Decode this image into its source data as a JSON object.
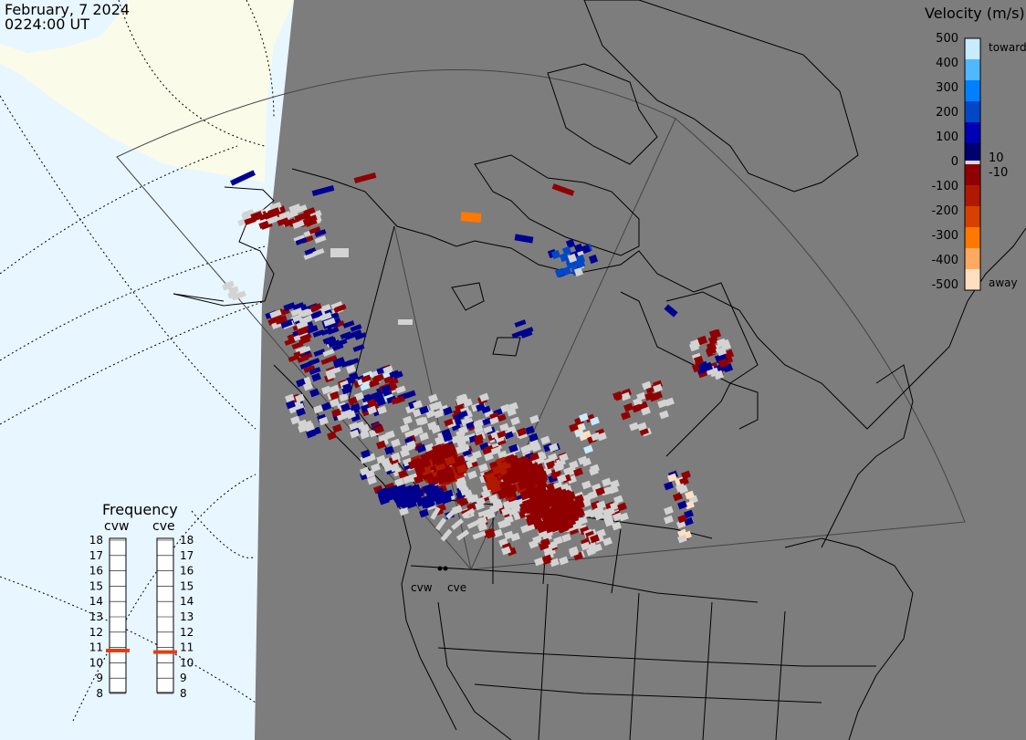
{
  "header": {
    "date": "February, 7 2024",
    "time": "0224:00 UT"
  },
  "colorbar": {
    "title": "Velocity (m/s)",
    "ticks": [
      "500",
      "400",
      "300",
      "200",
      "100",
      "10",
      "0",
      "-10",
      "-100",
      "-200",
      "-300",
      "-400",
      "-500"
    ],
    "toward_label": "toward",
    "away_label": "away",
    "colors": [
      "#ffdfc0",
      "#ffaa60",
      "#ff7800",
      "#d84000",
      "#b01800",
      "#900000",
      "#000070",
      "#0000b4",
      "#0048c8",
      "#0080ff",
      "#50b8ff",
      "#c8ecff"
    ],
    "zero_band_color": "#d9d9d9"
  },
  "frequency": {
    "title": "Frequency",
    "radars": [
      {
        "code": "cvw",
        "current_mhz": 10.8
      },
      {
        "code": "cve",
        "current_mhz": 10.7
      }
    ],
    "scale": [
      "18",
      "17",
      "16",
      "15",
      "14",
      "13",
      "12",
      "11",
      "10",
      "9",
      "8"
    ],
    "marker_color": "#e04010"
  },
  "map": {
    "ocean_color": "#e8f6ff",
    "land_color": "#fbfbea",
    "night_shade_color": "#7d7d7d",
    "ground_scatter_color": "#d3d3d3",
    "site_labels": [
      "cvw",
      "cve"
    ]
  }
}
